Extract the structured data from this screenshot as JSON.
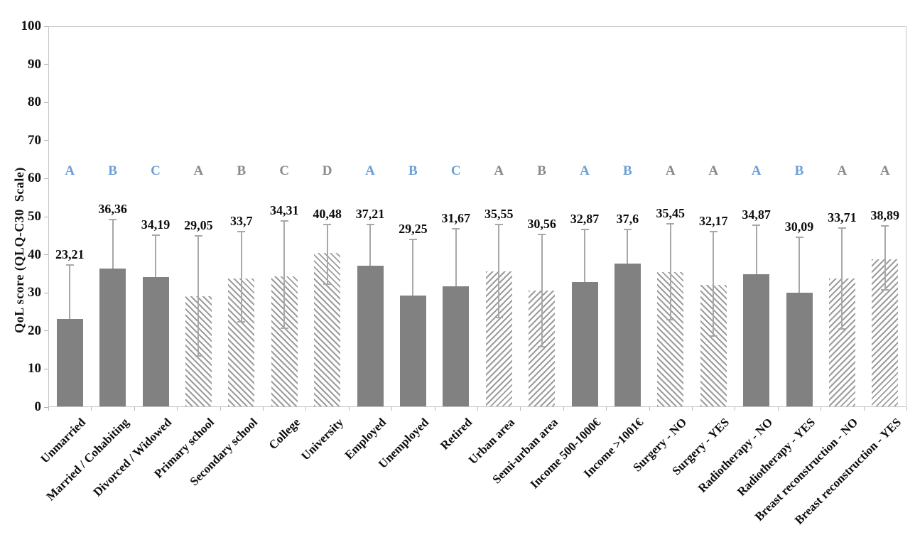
{
  "chart_data": {
    "type": "bar",
    "title": "",
    "xlabel": "",
    "ylabel": "QoL score (QLQ-C30  Scale)",
    "ylim": [
      0,
      100
    ],
    "ytick_step": 10,
    "grid": false,
    "legend": "none",
    "decimal_separator": ",",
    "letter_row_value": 62,
    "bars": [
      {
        "category": "Unmarried",
        "value": 23.21,
        "value_label": "23,21",
        "letter": "A",
        "letter_color": "blue",
        "fill": "solid",
        "err_high": 37.4,
        "err_low": null
      },
      {
        "category": "Married / Cohabiting",
        "value": 36.36,
        "value_label": "36,36",
        "letter": "B",
        "letter_color": "blue",
        "fill": "solid",
        "err_high": 49.2,
        "err_low": null
      },
      {
        "category": "Divorced / Widowed",
        "value": 34.19,
        "value_label": "34,19",
        "letter": "C",
        "letter_color": "blue",
        "fill": "solid",
        "err_high": 45.1,
        "err_low": null
      },
      {
        "category": "Primary school",
        "value": 29.05,
        "value_label": "29,05",
        "letter": "A",
        "letter_color": "gray",
        "fill": "hatch-down",
        "err_high": 44.9,
        "err_low": 13.4
      },
      {
        "category": "Secondary school",
        "value": 33.7,
        "value_label": "33,7",
        "letter": "B",
        "letter_color": "gray",
        "fill": "hatch-down",
        "err_high": 46.0,
        "err_low": 22.4
      },
      {
        "category": "College",
        "value": 34.31,
        "value_label": "34,31",
        "letter": "C",
        "letter_color": "gray",
        "fill": "hatch-down",
        "err_high": 48.8,
        "err_low": 20.8
      },
      {
        "category": "University",
        "value": 40.48,
        "value_label": "40,48",
        "letter": "D",
        "letter_color": "gray",
        "fill": "hatch-down",
        "err_high": 48.0,
        "err_low": 32.3
      },
      {
        "category": "Employed",
        "value": 37.21,
        "value_label": "37,21",
        "letter": "A",
        "letter_color": "blue",
        "fill": "solid",
        "err_high": 47.9,
        "err_low": null
      },
      {
        "category": "Unemployed",
        "value": 29.25,
        "value_label": "29,25",
        "letter": "B",
        "letter_color": "blue",
        "fill": "solid",
        "err_high": 44.1,
        "err_low": null
      },
      {
        "category": "Retired",
        "value": 31.67,
        "value_label": "31,67",
        "letter": "C",
        "letter_color": "blue",
        "fill": "solid",
        "err_high": 46.9,
        "err_low": null
      },
      {
        "category": "Urban area",
        "value": 35.55,
        "value_label": "35,55",
        "letter": "A",
        "letter_color": "gray",
        "fill": "hatch-up",
        "err_high": 47.9,
        "err_low": 23.6
      },
      {
        "category": "Semi-urban area",
        "value": 30.56,
        "value_label": "30,56",
        "letter": "B",
        "letter_color": "gray",
        "fill": "hatch-up",
        "err_high": 45.4,
        "err_low": 15.9
      },
      {
        "category": "Income 500-1000€",
        "value": 32.87,
        "value_label": "32,87",
        "letter": "A",
        "letter_color": "blue",
        "fill": "solid",
        "err_high": 46.7,
        "err_low": null
      },
      {
        "category": "Income >1001€",
        "value": 37.6,
        "value_label": "37,6",
        "letter": "B",
        "letter_color": "blue",
        "fill": "solid",
        "err_high": 46.7,
        "err_low": null
      },
      {
        "category": "Surgery - NO",
        "value": 35.45,
        "value_label": "35,45",
        "letter": "A",
        "letter_color": "gray",
        "fill": "hatch-down",
        "err_high": 48.2,
        "err_low": 23.0
      },
      {
        "category": "Surgery - YES",
        "value": 32.17,
        "value_label": "32,17",
        "letter": "A",
        "letter_color": "gray",
        "fill": "hatch-down",
        "err_high": 46.0,
        "err_low": 18.7
      },
      {
        "category": "Radiotherapy - NO",
        "value": 34.87,
        "value_label": "34,87",
        "letter": "A",
        "letter_color": "blue",
        "fill": "solid",
        "err_high": 47.7,
        "err_low": null
      },
      {
        "category": "Radiotherapy - YES",
        "value": 30.09,
        "value_label": "30,09",
        "letter": "B",
        "letter_color": "blue",
        "fill": "solid",
        "err_high": 44.5,
        "err_low": null
      },
      {
        "category": "Breast reconstruction - NO",
        "value": 33.71,
        "value_label": "33,71",
        "letter": "A",
        "letter_color": "gray",
        "fill": "hatch-up",
        "err_high": 47.1,
        "err_low": 20.6
      },
      {
        "category": "Breast reconstruction - YES",
        "value": 38.89,
        "value_label": "38,89",
        "letter": "A",
        "letter_color": "gray",
        "fill": "hatch-up",
        "err_high": 47.5,
        "err_low": 30.8
      }
    ]
  },
  "colors": {
    "bar_solid": "#818181",
    "hatch_stripe": "#9c9c9c",
    "error_bar": "#a8a8a8",
    "letter_blue": "#6c9fd3",
    "letter_gray": "#8a8a8a",
    "axis_line": "#c4c4c4",
    "text": "#111111",
    "background": "#ffffff"
  }
}
